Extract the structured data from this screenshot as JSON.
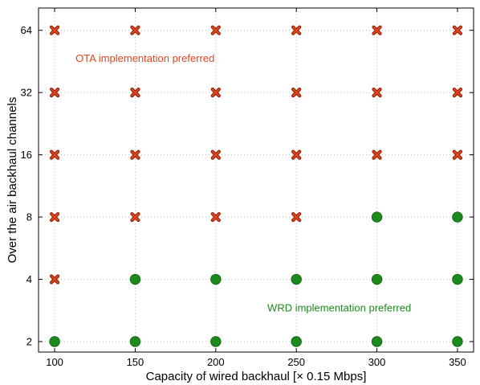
{
  "chart_data": {
    "type": "scatter",
    "xlabel": "Capacity of wired backhaul [× 0.15 Mbps]",
    "ylabel": "Over the air backhaul channels",
    "x_ticks": [
      100,
      150,
      200,
      250,
      300,
      350
    ],
    "y_ticks": [
      2,
      4,
      8,
      16,
      32,
      64
    ],
    "y_scale": "log2",
    "xlim": [
      90,
      360
    ],
    "ylim": [
      1.78,
      82
    ],
    "grid": true,
    "colors": {
      "OTA": "#e0461e",
      "WRD": "#1d8a1d",
      "OTA_edge": "#8b1a00",
      "WRD_edge": "#0e5c0e"
    },
    "series": [
      {
        "key": "OTA",
        "marker": "x",
        "points": [
          {
            "x": 100,
            "y": 4
          },
          {
            "x": 100,
            "y": 8
          },
          {
            "x": 100,
            "y": 16
          },
          {
            "x": 100,
            "y": 32
          },
          {
            "x": 100,
            "y": 64
          },
          {
            "x": 150,
            "y": 8
          },
          {
            "x": 150,
            "y": 16
          },
          {
            "x": 150,
            "y": 32
          },
          {
            "x": 150,
            "y": 64
          },
          {
            "x": 200,
            "y": 8
          },
          {
            "x": 200,
            "y": 16
          },
          {
            "x": 200,
            "y": 32
          },
          {
            "x": 200,
            "y": 64
          },
          {
            "x": 250,
            "y": 8
          },
          {
            "x": 250,
            "y": 16
          },
          {
            "x": 250,
            "y": 32
          },
          {
            "x": 250,
            "y": 64
          },
          {
            "x": 300,
            "y": 16
          },
          {
            "x": 300,
            "y": 32
          },
          {
            "x": 300,
            "y": 64
          },
          {
            "x": 350,
            "y": 16
          },
          {
            "x": 350,
            "y": 32
          },
          {
            "x": 350,
            "y": 64
          }
        ]
      },
      {
        "key": "WRD",
        "marker": "circle",
        "points": [
          {
            "x": 100,
            "y": 2
          },
          {
            "x": 150,
            "y": 2
          },
          {
            "x": 150,
            "y": 4
          },
          {
            "x": 200,
            "y": 2
          },
          {
            "x": 200,
            "y": 4
          },
          {
            "x": 250,
            "y": 2
          },
          {
            "x": 250,
            "y": 4
          },
          {
            "x": 300,
            "y": 2
          },
          {
            "x": 300,
            "y": 4
          },
          {
            "x": 300,
            "y": 8
          },
          {
            "x": 350,
            "y": 2
          },
          {
            "x": 350,
            "y": 4
          },
          {
            "x": 350,
            "y": 8
          }
        ]
      }
    ],
    "annotations": [
      {
        "key": "OTA",
        "text": "OTA implementation preferred",
        "x": 113,
        "y": 45
      },
      {
        "key": "WRD",
        "text": "WRD implementation preferred",
        "x": 232,
        "y": 2.8
      }
    ]
  }
}
